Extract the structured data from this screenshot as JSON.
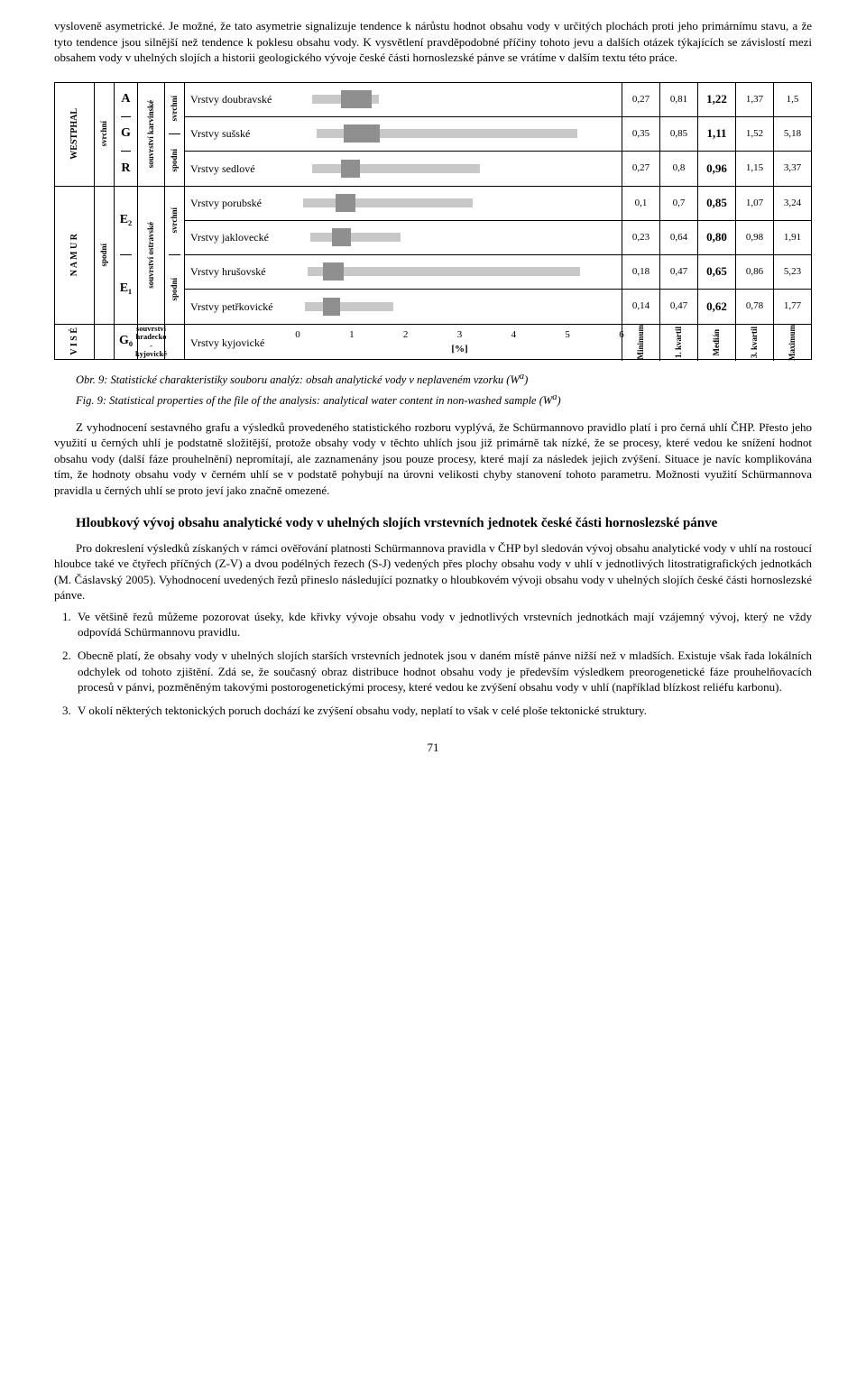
{
  "intro": {
    "p1": "vysloveně asymetrické. Je možné, že tato asymetrie signalizuje tendence k nárůstu hodnot obsahu vody v určitých plochách proti jeho primárnímu stavu, a že tyto tendence jsou silnější než tendence k poklesu obsahu vody. K vysvětlení pravděpodobné příčiny tohoto jevu a dalších otázek týkajících se závislostí mezi obsahem vody v uhelných slojích a historii geologického vývoje české části hornoslezské pánve se vrátíme v dalším textu této práce."
  },
  "diagram": {
    "xmax": 6,
    "ticks": [
      0,
      1,
      2,
      3,
      4,
      5,
      6
    ],
    "xlabel": "[%]",
    "stat_headers": [
      "Minimum",
      "1. kvartil",
      "Medián",
      "3. kvartil",
      "Maximum"
    ],
    "bands": [
      {
        "stage": "WESTPHAL",
        "sub": "svrchní",
        "letters": [
          "A",
          "G",
          "R"
        ],
        "souv": "souvrství karvinské",
        "svrch": [
          "svrchní",
          "spodní"
        ],
        "rows": [
          {
            "name": "Vrstvy doubravské",
            "min": 0.27,
            "q1": 0.81,
            "med": "1,22",
            "q3": 1.37,
            "max": 1.5
          },
          {
            "name": "Vrstvy sušské",
            "min": 0.35,
            "q1": 0.85,
            "med": "1,11",
            "q3": 1.52,
            "max": 5.18
          },
          {
            "name": "Vrstvy sedlové",
            "min": 0.27,
            "q1": 0.8,
            "med": "0,96",
            "q3": 1.15,
            "max": 3.37
          }
        ]
      },
      {
        "stage": "N A M U R",
        "sub": "spodní",
        "letters": [
          "E₂",
          "E₁"
        ],
        "souv": "souvrství ostravské",
        "svrch": [
          "svrchní",
          "spodní"
        ],
        "rows": [
          {
            "name": "Vrstvy porubské",
            "min": 0.1,
            "q1": 0.7,
            "med": "0,85",
            "q3": 1.07,
            "max": 3.24
          },
          {
            "name": "Vrstvy jaklovecké",
            "min": 0.23,
            "q1": 0.64,
            "med": "0,80",
            "q3": 0.98,
            "max": 1.91
          },
          {
            "name": "Vrstvy hrušovské",
            "min": 0.18,
            "q1": 0.47,
            "med": "0,65",
            "q3": 0.86,
            "max": 5.23
          },
          {
            "name": "Vrstvy petřkovické",
            "min": 0.14,
            "q1": 0.47,
            "med": "0,62",
            "q3": 0.78,
            "max": 1.77
          }
        ]
      },
      {
        "stage": "V I S É",
        "letters": [
          "G₀"
        ],
        "souv_multi": "souvrství hradecko -kyjovické",
        "rows": [
          {
            "name": "Vrstvy kyjovické",
            "axis": true
          }
        ]
      }
    ]
  },
  "captions": {
    "c1a": "Obr. 9: Statistické charakteristiky souboru analýz: obsah analytické vody v neplaveném vzorku (W",
    "c1b": ")",
    "c2a": "Fig. 9: Statistical properties of the file of the analysis: analytical water content in non-washed sample (W",
    "c2b": ")",
    "sup": "a"
  },
  "body": {
    "p2": "Z vyhodnocení sestavného grafu a výsledků provedeného statistického rozboru vyplývá, že Schürmannovo pravidlo platí i pro černá uhlí ČHP. Přesto jeho využití u černých uhlí je podstatně složitější, protože obsahy vody v těchto uhlích jsou již primárně tak nízké, že se procesy, které vedou ke snížení hodnot obsahu vody (další fáze prouhelnění) nepromítají, ale zaznamenány jsou pouze procesy, které mají za následek jejich zvýšení. Situace je navíc komplikována tím, že hodnoty obsahu vody v černém uhlí se v podstatě pohybují na úrovni velikosti chyby stanovení tohoto parametru. Možnosti využití Schürmannova pravidla u černých uhlí se proto jeví jako značně omezené."
  },
  "section": {
    "title": "Hloubkový vývoj obsahu analytické vody v uhelných slojích vrstevních jednotek české části hornoslezské pánve",
    "p3": "Pro dokreslení výsledků získaných v rámci ověřování platnosti Schürmannova pravidla v ČHP byl sledován vývoj obsahu analytické vody v uhlí na rostoucí hloubce také ve čtyřech příčných (Z-V) a dvou podélných řezech (S-J) vedených přes plochy obsahu vody v uhlí v jednotlivých litostratigrafických jednotkách (M. Čáslavský 2005). Vyhodnocení uvedených řezů přineslo následující poznatky o hloubkovém vývoji obsahu vody v uhelných slojích české části hornoslezské pánve.",
    "items": [
      "Ve většině řezů můžeme pozorovat úseky, kde křivky vývoje obsahu vody v jednotlivých vrstevních jednotkách mají vzájemný vývoj, který ne vždy odpovídá Schürmannovu pravidlu.",
      "Obecně platí, že obsahy vody v uhelných slojích starších vrstevních jednotek jsou v daném místě pánve nižší než v mladších. Existuje však řada lokálních odchylek od tohoto zjištění. Zdá se, že současný obraz distribuce hodnot obsahu vody je především výsledkem preorogenetické fáze prouhelňovacích procesů v pánvi, pozměněným takovými postorogenetickými procesy, které vedou ke zvýšení obsahu vody v uhlí (například blízkost reliéfu karbonu).",
      "V okolí některých tektonických poruch dochází ke zvýšení obsahu vody, neplatí to však v celé ploše tektonické struktury."
    ]
  },
  "pagenum": "71"
}
